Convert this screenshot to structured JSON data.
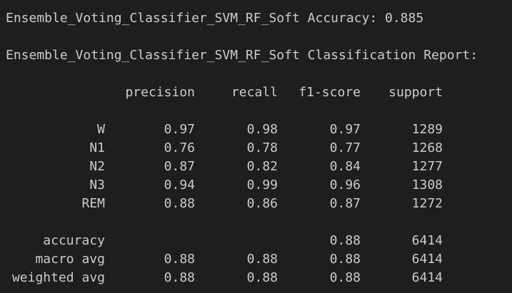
{
  "output": {
    "accuracy_line": "Ensemble_Voting_Classifier_SVM_RF_Soft Accuracy: 0.885",
    "report_title": "Ensemble_Voting_Classifier_SVM_RF_Soft Classification Report:"
  },
  "report": {
    "headers": [
      "precision",
      "recall",
      "f1-score",
      "support"
    ],
    "rows": [
      {
        "label": "W",
        "precision": "0.97",
        "recall": "0.98",
        "f1": "0.97",
        "support": "1289"
      },
      {
        "label": "N1",
        "precision": "0.76",
        "recall": "0.78",
        "f1": "0.77",
        "support": "1268"
      },
      {
        "label": "N2",
        "precision": "0.87",
        "recall": "0.82",
        "f1": "0.84",
        "support": "1277"
      },
      {
        "label": "N3",
        "precision": "0.94",
        "recall": "0.99",
        "f1": "0.96",
        "support": "1308"
      },
      {
        "label": "REM",
        "precision": "0.88",
        "recall": "0.86",
        "f1": "0.87",
        "support": "1272"
      }
    ],
    "summary": [
      {
        "label": "accuracy",
        "precision": "",
        "recall": "",
        "f1": "0.88",
        "support": "6414"
      },
      {
        "label": "macro avg",
        "precision": "0.88",
        "recall": "0.88",
        "f1": "0.88",
        "support": "6414"
      },
      {
        "label": "weighted avg",
        "precision": "0.88",
        "recall": "0.88",
        "f1": "0.88",
        "support": "6414"
      }
    ]
  }
}
